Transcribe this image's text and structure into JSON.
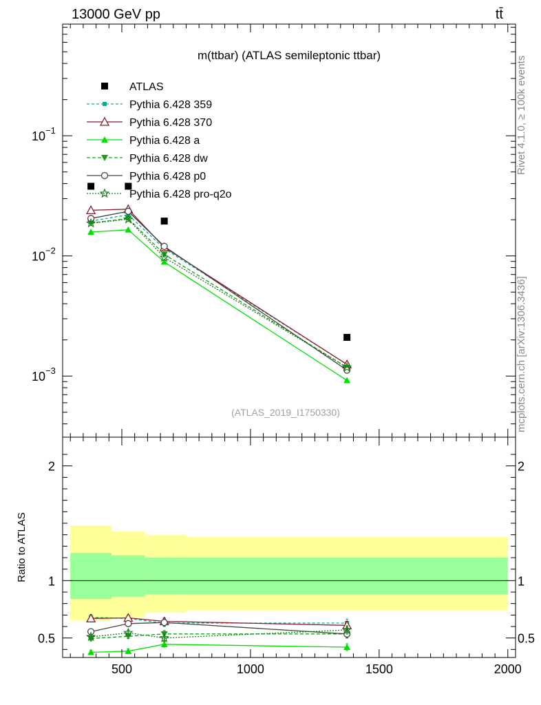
{
  "header": {
    "energy_label": "13000 GeV pp",
    "process_label": "tt̄",
    "rivet_label": "Rivet 4.1.0, ≥ 100k events",
    "source_label": "mcplots.cern.ch [arXiv:1306.3436]",
    "analysis_id": "(ATLAS_2019_I1750330)"
  },
  "chart_data": [
    {
      "type": "line",
      "panel": "main",
      "title": "m(ttbar) (ATLAS semileptonic ttbar)",
      "xlabel": "",
      "ylabel": "",
      "yscale": "log",
      "xlim": [
        270,
        2030
      ],
      "ylim": [
        0.00031,
        0.85
      ],
      "y_ticks": [
        {
          "value": 0.1,
          "mantissa": "10",
          "exp": "−1"
        },
        {
          "value": 0.01,
          "mantissa": "10",
          "exp": "−2"
        },
        {
          "value": 0.001,
          "mantissa": "10",
          "exp": "−3"
        }
      ],
      "x": [
        380,
        525,
        665,
        1375
      ],
      "reference": {
        "name": "ATLAS",
        "color": "#000000",
        "values": [
          0.038,
          0.038,
          0.0195,
          0.0021
        ]
      },
      "series": [
        {
          "name": "Pythia 6.428 359",
          "color": "#00b08a",
          "dash": "4,3",
          "marker": "square-small",
          "values": [
            0.0195,
            0.022,
            0.0115,
            0.00125
          ]
        },
        {
          "name": "Pythia 6.428 370",
          "color": "#8b1a2a",
          "dash": "",
          "marker": "triangle-open",
          "values": [
            0.024,
            0.0245,
            0.0118,
            0.00125
          ]
        },
        {
          "name": "Pythia 6.428 a",
          "color": "#00e000",
          "dash": "",
          "marker": "triangle-filled",
          "values": [
            0.0158,
            0.0165,
            0.0089,
            0.00092
          ]
        },
        {
          "name": "Pythia 6.428 dw",
          "color": "#10a010",
          "dash": "5,3",
          "marker": "triangle-down",
          "values": [
            0.0188,
            0.0205,
            0.0103,
            0.00118
          ]
        },
        {
          "name": "Pythia 6.428 p0",
          "color": "#444444",
          "dash": "",
          "marker": "circle-open",
          "values": [
            0.0205,
            0.0235,
            0.012,
            0.00112
          ]
        },
        {
          "name": "Pythia 6.428 pro-q2o",
          "color": "#1a7a1a",
          "dash": "2,2",
          "marker": "star",
          "values": [
            0.0187,
            0.0202,
            0.0097,
            0.00118
          ]
        }
      ]
    },
    {
      "type": "line",
      "panel": "ratio",
      "ylabel": "Ratio to ATLAS",
      "xlim": [
        270,
        2030
      ],
      "ylim": [
        0.33,
        2.25
      ],
      "y_ticks": [
        0.5,
        1,
        2
      ],
      "x_ticks": [
        500,
        1000,
        1500,
        2000
      ],
      "x": [
        380,
        525,
        665,
        1375
      ],
      "band_edges": [
        300,
        460,
        590,
        750,
        2000
      ],
      "band_inner": [
        [
          0.84,
          1.24
        ],
        [
          0.86,
          1.22
        ],
        [
          0.88,
          1.2
        ],
        [
          0.88,
          1.2
        ]
      ],
      "band_outer": [
        [
          0.65,
          1.48
        ],
        [
          0.68,
          1.43
        ],
        [
          0.72,
          1.4
        ],
        [
          0.74,
          1.38
        ]
      ],
      "series": [
        {
          "name": "Pythia 6.428 359",
          "values": [
            0.68,
            0.67,
            0.63,
            0.63
          ],
          "errors": [
            0.025,
            0.025,
            0.03,
            0.035
          ]
        },
        {
          "name": "Pythia 6.428 370",
          "values": [
            0.67,
            0.675,
            0.645,
            0.61
          ],
          "errors": [
            0.025,
            0.025,
            0.03,
            0.035
          ]
        },
        {
          "name": "Pythia 6.428 a",
          "values": [
            0.375,
            0.385,
            0.445,
            0.42
          ],
          "errors": [
            0.02,
            0.02,
            0.025,
            0.03
          ]
        },
        {
          "name": "Pythia 6.428 dw",
          "values": [
            0.495,
            0.515,
            0.535,
            0.535
          ],
          "errors": [
            0.02,
            0.02,
            0.03,
            0.035
          ]
        },
        {
          "name": "Pythia 6.428 p0",
          "values": [
            0.555,
            0.625,
            0.635,
            0.535
          ],
          "errors": [
            0.02,
            0.02,
            0.03,
            0.035
          ]
        },
        {
          "name": "Pythia 6.428 pro-q2o",
          "values": [
            0.51,
            0.545,
            0.5,
            0.57
          ],
          "errors": [
            0.02,
            0.02,
            0.03,
            0.035
          ]
        }
      ]
    }
  ]
}
